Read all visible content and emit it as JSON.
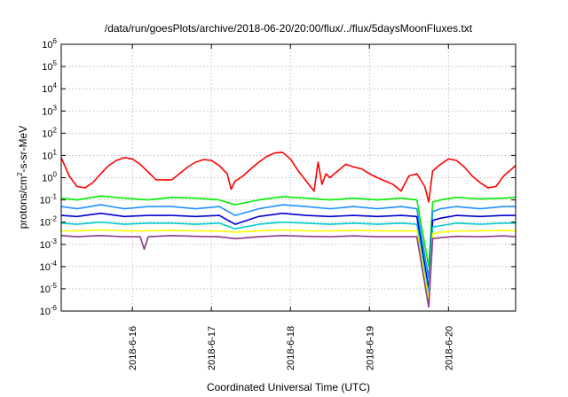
{
  "chart_data": {
    "type": "line",
    "title": "/data/run/goesPlots/archive/2018-06-20/20:00/flux/../flux/5daysMoonFluxes.txt",
    "xlabel": "Coordinated Universal Time (UTC)",
    "ylabel": "protons/cm²-s-sr-MeV",
    "ylabel_base": "protons/cm",
    "ylabel_sup": "2",
    "ylabel_rest": "-s-sr-MeV",
    "yscale": "log",
    "ylim": [
      1e-06,
      1000000.0
    ],
    "xlim": [
      15.1,
      20.85
    ],
    "grid": true,
    "x_tick_values": [
      16,
      17,
      18,
      19,
      20
    ],
    "x_tick_labels": [
      "2018-6-16",
      "2018-6-17",
      "2018-6-18",
      "2018-6-19",
      "2018-6-20"
    ],
    "y_ticks": [
      {
        "value": 1e-06,
        "base": "10",
        "exp": "-6"
      },
      {
        "value": 1e-05,
        "base": "10",
        "exp": "-5"
      },
      {
        "value": 0.0001,
        "base": "10",
        "exp": "-4"
      },
      {
        "value": 0.001,
        "base": "10",
        "exp": "-3"
      },
      {
        "value": 0.01,
        "base": "10",
        "exp": "-2"
      },
      {
        "value": 0.1,
        "base": "10",
        "exp": "-1"
      },
      {
        "value": 1,
        "base": "10",
        "exp": "0"
      },
      {
        "value": 10,
        "base": "10",
        "exp": "1"
      },
      {
        "value": 100,
        "base": "10",
        "exp": "2"
      },
      {
        "value": 1000,
        "base": "10",
        "exp": "3"
      },
      {
        "value": 10000,
        "base": "10",
        "exp": "4"
      },
      {
        "value": 100000,
        "base": "10",
        "exp": "5"
      },
      {
        "value": 1000000,
        "base": "10",
        "exp": "6"
      }
    ],
    "series": [
      {
        "color": "#ff0000",
        "x": [
          15.1,
          15.2,
          15.3,
          15.4,
          15.5,
          15.6,
          15.7,
          15.8,
          15.9,
          16.0,
          16.1,
          16.2,
          16.3,
          16.5,
          16.7,
          16.8,
          16.9,
          17.0,
          17.1,
          17.2,
          17.25,
          17.3,
          17.4,
          17.5,
          17.6,
          17.7,
          17.8,
          17.9,
          18.0,
          18.1,
          18.2,
          18.3,
          18.35,
          18.4,
          18.45,
          18.5,
          18.6,
          18.7,
          18.8,
          18.9,
          19.0,
          19.1,
          19.2,
          19.3,
          19.4,
          19.5,
          19.6,
          19.7,
          19.75,
          19.8,
          19.9,
          20.0,
          20.1,
          20.2,
          20.3,
          20.4,
          20.5,
          20.6,
          20.7,
          20.85
        ],
        "y": [
          8,
          1.2,
          0.4,
          0.35,
          0.6,
          1.5,
          3.5,
          6,
          8,
          7,
          4,
          1.8,
          0.8,
          0.8,
          3,
          5,
          6.5,
          6,
          3.5,
          1.5,
          0.3,
          0.7,
          1.2,
          2.5,
          5,
          9,
          13,
          14,
          7,
          2,
          0.7,
          0.25,
          5,
          0.5,
          1.5,
          1.0,
          2,
          4,
          3,
          2.5,
          1.5,
          1.0,
          0.7,
          0.5,
          0.25,
          1.2,
          1.5,
          0.4,
          0.08,
          2,
          4,
          7,
          6,
          3,
          1.2,
          0.6,
          0.35,
          0.4,
          1.2,
          3.5
        ]
      },
      {
        "color": "#00ee00",
        "x": [
          15.1,
          15.3,
          15.6,
          15.9,
          16.2,
          16.5,
          16.8,
          17.1,
          17.3,
          17.6,
          17.9,
          18.2,
          18.5,
          18.8,
          19.1,
          19.4,
          19.6,
          19.75,
          19.8,
          19.9,
          20.1,
          20.4,
          20.7,
          20.85
        ],
        "y": [
          0.12,
          0.1,
          0.15,
          0.12,
          0.1,
          0.13,
          0.12,
          0.1,
          0.06,
          0.1,
          0.14,
          0.12,
          0.1,
          0.12,
          0.1,
          0.12,
          0.1,
          0.0001,
          0.08,
          0.1,
          0.13,
          0.11,
          0.12,
          0.13
        ]
      },
      {
        "color": "#1e90ff",
        "x": [
          15.1,
          15.3,
          15.6,
          15.9,
          16.2,
          16.5,
          16.8,
          17.1,
          17.3,
          17.6,
          17.9,
          18.2,
          18.5,
          18.8,
          19.1,
          19.4,
          19.6,
          19.75,
          19.8,
          19.9,
          20.1,
          20.4,
          20.7,
          20.85
        ],
        "y": [
          0.05,
          0.04,
          0.06,
          0.04,
          0.05,
          0.05,
          0.04,
          0.05,
          0.02,
          0.04,
          0.06,
          0.05,
          0.04,
          0.05,
          0.04,
          0.05,
          0.04,
          3e-05,
          0.03,
          0.04,
          0.05,
          0.04,
          0.05,
          0.05
        ]
      },
      {
        "color": "#0000cd",
        "x": [
          15.1,
          15.3,
          15.6,
          15.9,
          16.2,
          16.5,
          16.8,
          17.1,
          17.3,
          17.6,
          17.9,
          18.2,
          18.5,
          18.8,
          19.1,
          19.4,
          19.6,
          19.75,
          19.8,
          19.9,
          20.1,
          20.4,
          20.7,
          20.85
        ],
        "y": [
          0.02,
          0.018,
          0.025,
          0.018,
          0.02,
          0.02,
          0.018,
          0.02,
          0.008,
          0.018,
          0.025,
          0.02,
          0.018,
          0.02,
          0.018,
          0.02,
          0.018,
          1e-05,
          0.012,
          0.015,
          0.02,
          0.018,
          0.02,
          0.02
        ]
      },
      {
        "color": "#00cccc",
        "x": [
          15.1,
          15.3,
          15.6,
          15.9,
          16.2,
          16.5,
          16.8,
          17.1,
          17.3,
          17.6,
          17.9,
          18.2,
          18.5,
          18.8,
          19.1,
          19.4,
          19.6,
          19.75,
          19.8,
          19.9,
          20.1,
          20.4,
          20.7,
          20.85
        ],
        "y": [
          0.009,
          0.008,
          0.01,
          0.008,
          0.009,
          0.009,
          0.008,
          0.009,
          0.005,
          0.008,
          0.01,
          0.009,
          0.008,
          0.009,
          0.008,
          0.009,
          0.008,
          5e-06,
          0.006,
          0.007,
          0.009,
          0.008,
          0.009,
          0.009
        ]
      },
      {
        "color": "#ffff00",
        "x": [
          15.1,
          15.3,
          15.6,
          15.9,
          16.2,
          16.5,
          16.8,
          17.1,
          17.3,
          17.6,
          17.9,
          18.2,
          18.5,
          18.8,
          19.1,
          19.4,
          19.6,
          19.75,
          19.8,
          19.9,
          20.1,
          20.4,
          20.7,
          20.85
        ],
        "y": [
          0.004,
          0.004,
          0.0045,
          0.004,
          0.004,
          0.0042,
          0.004,
          0.004,
          0.0035,
          0.004,
          0.0045,
          0.004,
          0.004,
          0.0042,
          0.004,
          0.004,
          0.004,
          3e-06,
          0.003,
          0.0035,
          0.004,
          0.004,
          0.0042,
          0.004
        ]
      },
      {
        "color": "#8b3a8b",
        "x": [
          15.1,
          15.3,
          15.6,
          15.9,
          16.1,
          16.15,
          16.2,
          16.5,
          16.8,
          17.1,
          17.3,
          17.6,
          17.9,
          18.2,
          18.5,
          18.8,
          19.1,
          19.4,
          19.6,
          19.75,
          19.8,
          19.9,
          20.1,
          20.4,
          20.7,
          20.85
        ],
        "y": [
          0.0025,
          0.0022,
          0.0025,
          0.0022,
          0.0022,
          0.0006,
          0.0022,
          0.0025,
          0.0023,
          0.0022,
          0.0018,
          0.0022,
          0.0025,
          0.0023,
          0.0022,
          0.0024,
          0.0022,
          0.0022,
          0.0022,
          1.5e-06,
          0.0018,
          0.002,
          0.0023,
          0.0022,
          0.0024,
          0.0022
        ]
      }
    ]
  }
}
